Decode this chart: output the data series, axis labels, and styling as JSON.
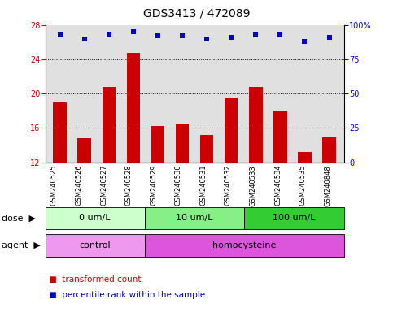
{
  "title": "GDS3413 / 472089",
  "samples": [
    "GSM240525",
    "GSM240526",
    "GSM240527",
    "GSM240528",
    "GSM240529",
    "GSM240530",
    "GSM240531",
    "GSM240532",
    "GSM240533",
    "GSM240534",
    "GSM240535",
    "GSM240848"
  ],
  "bar_values": [
    19.0,
    14.8,
    20.8,
    24.8,
    16.2,
    16.5,
    15.2,
    19.5,
    20.8,
    18.0,
    13.2,
    14.9
  ],
  "percentile_values": [
    93,
    90,
    93,
    95,
    92,
    92,
    90,
    91,
    93,
    93,
    88,
    91
  ],
  "bar_color": "#cc0000",
  "dot_color": "#0000cc",
  "ylim_left": [
    12,
    28
  ],
  "ylim_right": [
    0,
    100
  ],
  "yticks_left": [
    12,
    16,
    20,
    24,
    28
  ],
  "yticks_right": [
    0,
    25,
    50,
    75,
    100
  ],
  "yticklabels_right": [
    "0",
    "25",
    "50",
    "75",
    "100%"
  ],
  "dose_groups": [
    {
      "label": "0 um/L",
      "start": 0,
      "end": 4,
      "color": "#ccffcc"
    },
    {
      "label": "10 um/L",
      "start": 4,
      "end": 8,
      "color": "#88ee88"
    },
    {
      "label": "100 um/L",
      "start": 8,
      "end": 12,
      "color": "#33cc33"
    }
  ],
  "agent_groups": [
    {
      "label": "control",
      "start": 0,
      "end": 4,
      "color": "#ee99ee"
    },
    {
      "label": "homocysteine",
      "start": 4,
      "end": 12,
      "color": "#dd55dd"
    }
  ],
  "dose_label": "dose",
  "agent_label": "agent",
  "legend_bar_label": "transformed count",
  "legend_dot_label": "percentile rank within the sample",
  "axis_color_left": "#cc0000",
  "axis_color_right": "#0000cc",
  "background_color": "#ffffff",
  "bar_area_bg": "#e0e0e0",
  "title_fontsize": 10,
  "tick_fontsize": 7,
  "label_fontsize": 8,
  "sample_fontsize": 6
}
